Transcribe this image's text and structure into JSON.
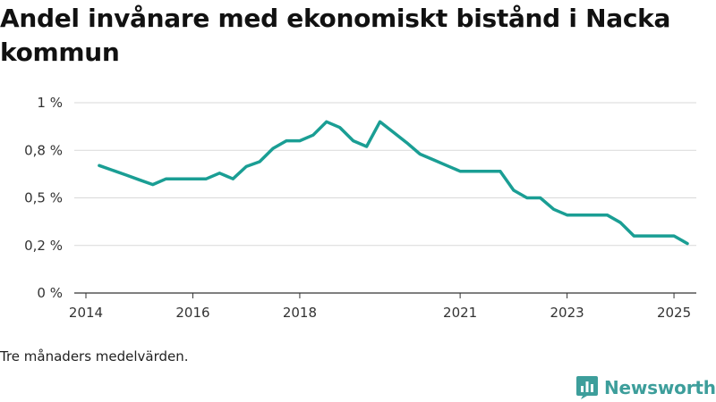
{
  "title": "Andel invånare med ekonomiskt bistånd i Nacka kommun",
  "note": "Tre månaders medelvärden.",
  "brand": {
    "name": "Newsworthy",
    "color": "#3d9e9b",
    "icon": "newsworthy-logo-icon"
  },
  "colors": {
    "line": "#1a9e94",
    "grid": "#d9d9d9",
    "axis": "#333333"
  },
  "chart_data": {
    "type": "line",
    "title": "Andel invånare med ekonomiskt bistånd i Nacka kommun",
    "xlabel": "",
    "ylabel": "",
    "grid": true,
    "legend": "none",
    "y_ticks": [
      0,
      0.25,
      0.5,
      0.75,
      1.0
    ],
    "y_tick_labels": [
      "0 %",
      "0,2 %",
      "0,5 %",
      "0,8 %",
      "1 %"
    ],
    "ylim": [
      0,
      1.0
    ],
    "xlim": [
      2014.0,
      2025.2
    ],
    "x_ticks": [
      2014,
      2016,
      2018,
      2021,
      2023,
      2025
    ],
    "x_tick_labels": [
      "2014",
      "2016",
      "2018",
      "2021",
      "2023",
      "2025"
    ],
    "series": [
      {
        "values": [
          [
            2014.25,
            0.67
          ],
          [
            2014.5,
            0.645
          ],
          [
            2014.75,
            0.62
          ],
          [
            2015.0,
            0.595
          ],
          [
            2015.25,
            0.57
          ],
          [
            2015.5,
            0.6
          ],
          [
            2015.75,
            0.6
          ],
          [
            2016.0,
            0.6
          ],
          [
            2016.25,
            0.6
          ],
          [
            2016.5,
            0.63
          ],
          [
            2016.75,
            0.6
          ],
          [
            2017.0,
            0.665
          ],
          [
            2017.25,
            0.69
          ],
          [
            2017.5,
            0.76
          ],
          [
            2017.75,
            0.8
          ],
          [
            2018.0,
            0.8
          ],
          [
            2018.25,
            0.83
          ],
          [
            2018.5,
            0.9
          ],
          [
            2018.75,
            0.87
          ],
          [
            2019.0,
            0.8
          ],
          [
            2019.25,
            0.77
          ],
          [
            2019.5,
            0.9
          ],
          [
            2019.75,
            0.845
          ],
          [
            2020.0,
            0.79
          ],
          [
            2020.25,
            0.73
          ],
          [
            2020.5,
            0.7
          ],
          [
            2020.75,
            0.67
          ],
          [
            2021.0,
            0.64
          ],
          [
            2021.25,
            0.64
          ],
          [
            2021.5,
            0.64
          ],
          [
            2021.75,
            0.64
          ],
          [
            2022.0,
            0.54
          ],
          [
            2022.25,
            0.5
          ],
          [
            2022.5,
            0.5
          ],
          [
            2022.75,
            0.44
          ],
          [
            2023.0,
            0.41
          ],
          [
            2023.25,
            0.41
          ],
          [
            2023.5,
            0.41
          ],
          [
            2023.75,
            0.41
          ],
          [
            2024.0,
            0.37
          ],
          [
            2024.25,
            0.3
          ],
          [
            2024.5,
            0.3
          ],
          [
            2024.75,
            0.3
          ],
          [
            2025.0,
            0.3
          ],
          [
            2025.25,
            0.26
          ]
        ]
      }
    ]
  }
}
